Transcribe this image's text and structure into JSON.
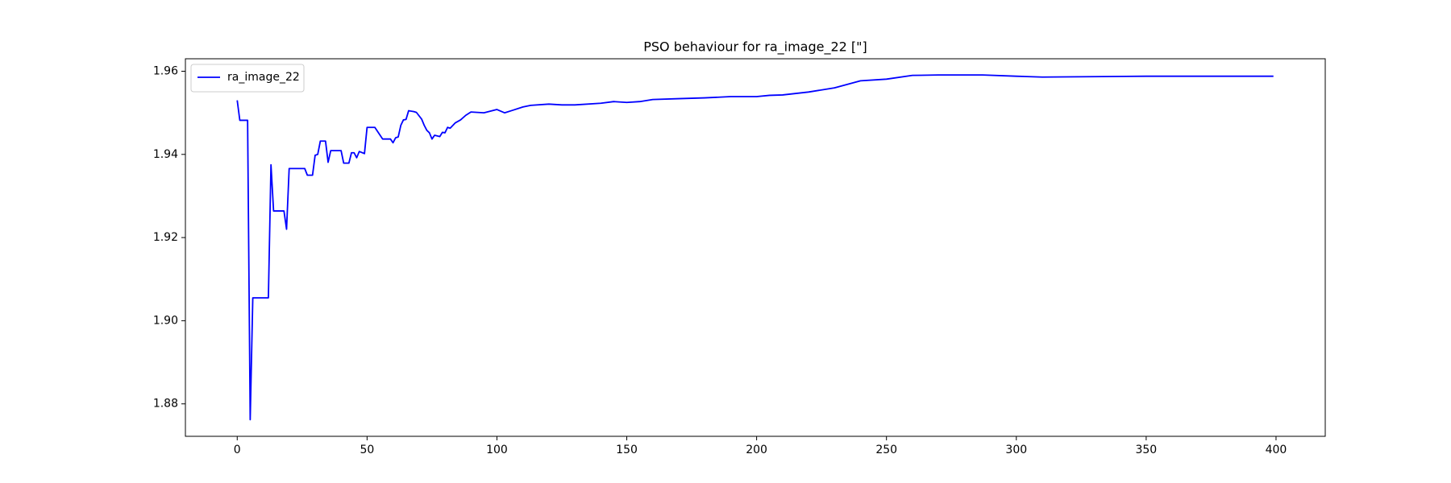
{
  "chart_data": {
    "type": "line",
    "title": "PSO behaviour for ra_image_22 [\"]",
    "x": [
      0,
      1,
      4,
      5,
      6,
      12,
      13,
      14,
      18,
      19,
      20,
      26,
      27,
      29,
      30,
      31,
      32,
      34,
      35,
      36,
      40,
      41,
      43,
      44,
      45,
      46,
      47,
      49,
      50,
      53,
      56,
      59,
      60,
      61,
      62,
      63,
      64,
      65,
      66,
      68,
      69,
      71,
      72,
      73,
      74,
      75,
      76,
      78,
      79,
      80,
      81,
      82,
      84,
      86,
      88,
      90,
      95,
      100,
      103,
      106,
      110,
      113,
      120,
      125,
      130,
      140,
      145,
      150,
      155,
      160,
      170,
      180,
      190,
      200,
      205,
      210,
      220,
      230,
      240,
      250,
      260,
      270,
      287,
      300,
      310,
      350,
      399
    ],
    "series": [
      {
        "name": "ra_image_22",
        "color": "#0000ff",
        "values": [
          1.953,
          1.9482,
          1.9482,
          1.8762,
          1.9055,
          1.9055,
          1.9375,
          1.9264,
          1.9264,
          1.922,
          1.9366,
          1.9366,
          1.935,
          1.935,
          1.9398,
          1.94,
          1.9432,
          1.9432,
          1.9381,
          1.9409,
          1.9409,
          1.9379,
          1.9379,
          1.9404,
          1.9404,
          1.9392,
          1.9407,
          1.9402,
          1.9465,
          1.9465,
          1.9437,
          1.9437,
          1.9428,
          1.944,
          1.9442,
          1.947,
          1.9483,
          1.9484,
          1.9505,
          1.9503,
          1.9501,
          1.9485,
          1.947,
          1.9458,
          1.9452,
          1.9437,
          1.9446,
          1.9443,
          1.9453,
          1.9452,
          1.9465,
          1.9463,
          1.9476,
          1.9483,
          1.9494,
          1.9502,
          1.95,
          1.9508,
          1.95,
          1.9506,
          1.9514,
          1.9518,
          1.9521,
          1.9519,
          1.9519,
          1.9523,
          1.9527,
          1.9525,
          1.9527,
          1.9532,
          1.9534,
          1.9536,
          1.9539,
          1.9539,
          1.9542,
          1.9543,
          1.955,
          1.956,
          1.9577,
          1.9581,
          1.959,
          1.9591,
          1.9591,
          1.9588,
          1.9586,
          1.9588,
          1.9588
        ]
      }
    ],
    "xlim": [
      -19.95,
      418.95
    ],
    "xticks": [
      0,
      50,
      100,
      150,
      200,
      250,
      300,
      350,
      400
    ],
    "ylim": [
      1.8722,
      1.963
    ],
    "yticks": [
      1.88,
      {
        "value": 1.9,
        "label": "1.90"
      },
      1.92,
      1.94,
      1.96
    ],
    "legend": "upper left"
  }
}
